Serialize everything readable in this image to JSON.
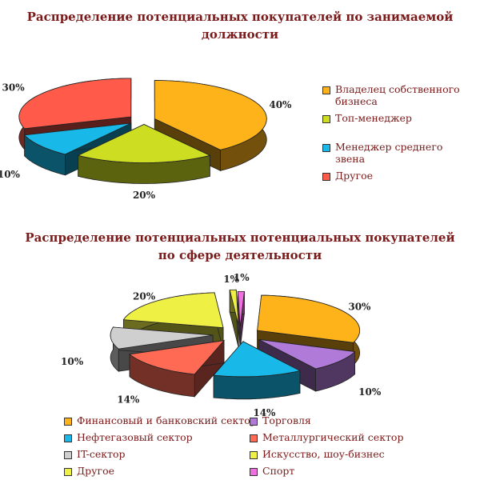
{
  "chart_data": [
    {
      "type": "pie",
      "title": "Распределение потенциальных покупателей по занимаемой должности",
      "categories": [
        "Владелец собственного бизнеса",
        "Топ-менеджер",
        "Менеджер среднего звена",
        "Другое"
      ],
      "values": [
        40,
        20,
        10,
        30
      ],
      "value_labels": [
        "40%",
        "20%",
        "10%",
        "30%"
      ],
      "colors": [
        "#ffb31a",
        "#ccdd22",
        "#18b8e8",
        "#ff5a4a"
      ],
      "legend_position": "right",
      "style": "3d-exploded"
    },
    {
      "type": "pie",
      "title": "Распределение потенциальных потенциальных покупателей по сфере деятельности",
      "categories": [
        "Финансовый и банковский сектор",
        "Торговля",
        "Нефтегазовый сектор",
        "Металлургический сектор",
        "IT-сектор",
        "Искусство, шоу-бизнес",
        "Другое",
        "Спорт"
      ],
      "values": [
        30,
        10,
        14,
        14,
        10,
        20,
        1,
        1
      ],
      "value_labels": [
        "30%",
        "10%",
        "14%",
        "14%",
        "10%",
        "20%",
        "1%",
        "1%"
      ],
      "colors": [
        "#ffb31a",
        "#b07ad8",
        "#18b8e8",
        "#ff6a55",
        "#cfcfcf",
        "#eef044",
        "#eef044",
        "#f070e0"
      ],
      "legend_position": "bottom",
      "style": "3d-exploded"
    }
  ]
}
